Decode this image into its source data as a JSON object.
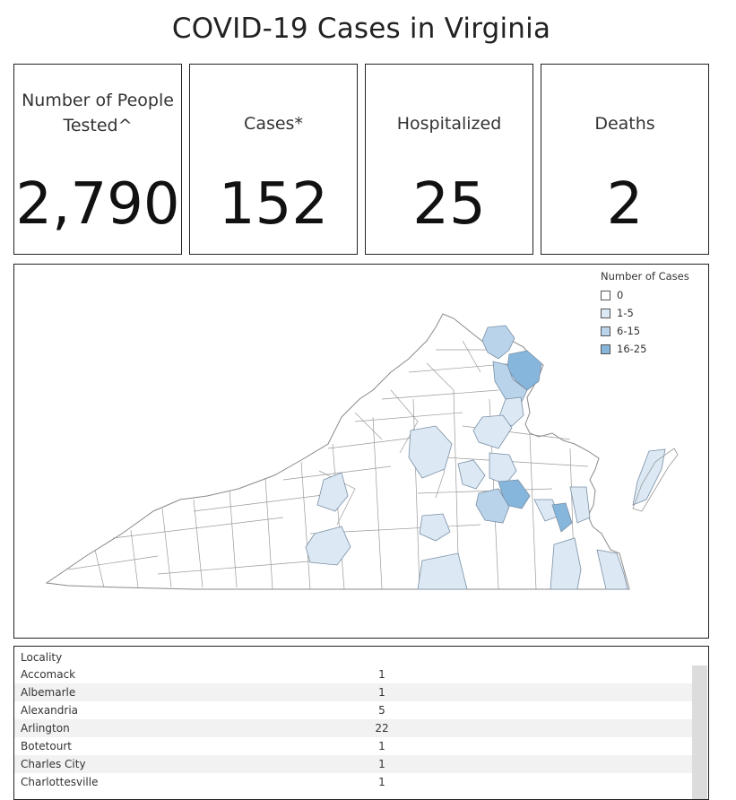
{
  "title": "COVID-19 Cases in Virginia",
  "kpis": [
    {
      "label_lines": [
        "Number of People",
        "Tested^"
      ],
      "value": "2,790"
    },
    {
      "label_lines": [
        "Cases*"
      ],
      "value": "152"
    },
    {
      "label_lines": [
        "Hospitalized"
      ],
      "value": "25"
    },
    {
      "label_lines": [
        "Deaths"
      ],
      "value": "2"
    }
  ],
  "map": {
    "legend": {
      "title": "Number of Cases",
      "items": [
        {
          "label": "0",
          "color": "#ffffff"
        },
        {
          "label": "1-5",
          "color": "#dce9f5"
        },
        {
          "label": "6-15",
          "color": "#b9d4ea"
        },
        {
          "label": "16-25",
          "color": "#86b6dc"
        }
      ]
    }
  },
  "table": {
    "column_header": "Locality",
    "rows": [
      {
        "locality": "Accomack",
        "cases": "1"
      },
      {
        "locality": "Albemarle",
        "cases": "1"
      },
      {
        "locality": "Alexandria",
        "cases": "5"
      },
      {
        "locality": "Arlington",
        "cases": "22"
      },
      {
        "locality": "Botetourt",
        "cases": "1"
      },
      {
        "locality": "Charles City",
        "cases": "1"
      },
      {
        "locality": "Charlottesville",
        "cases": "1"
      }
    ]
  }
}
